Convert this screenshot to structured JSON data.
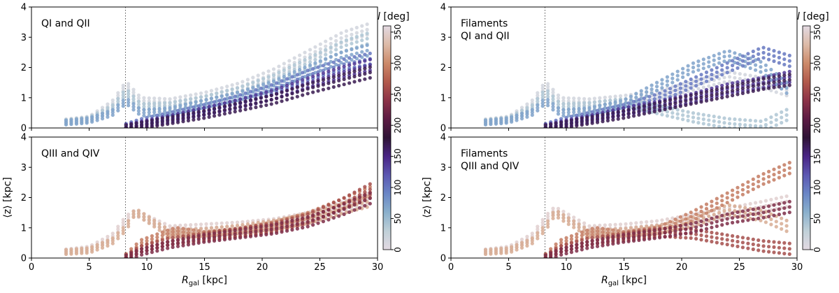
{
  "colorbar": {
    "label": "l [deg]",
    "ticks": [
      0,
      50,
      100,
      150,
      200,
      250,
      300,
      350
    ],
    "range": [
      0,
      360
    ],
    "colormap": "twilight",
    "stops": [
      "#e2d9e2",
      "#c0d0d8",
      "#8ab0cc",
      "#6a86c6",
      "#5c58b2",
      "#4a2585",
      "#2f1436",
      "#5c1b44",
      "#8c3348",
      "#b25a4c",
      "#cc8a6a",
      "#ddbba8",
      "#e2d9e2"
    ]
  },
  "chart_data": [
    {
      "id": "top-left",
      "type": "scatter",
      "annotation": [
        "QI and QII"
      ],
      "xlabel": "R_gal [kpc]",
      "ylabel": "",
      "xlim": [
        0,
        30
      ],
      "ylim": [
        0,
        4
      ],
      "xticks": [
        0,
        5,
        10,
        15,
        20,
        25,
        30
      ],
      "yticks": [
        0,
        1,
        2,
        3,
        4
      ],
      "vline_x": 8.15,
      "series": [
        {
          "name": "l=15",
          "l": 15,
          "x": [
            3,
            5,
            7,
            8.2,
            9.5,
            12,
            15,
            18,
            21,
            24,
            27,
            29.5
          ],
          "y": [
            0.22,
            0.3,
            0.8,
            1.45,
            0.9,
            0.85,
            1.05,
            1.35,
            1.8,
            2.4,
            3.0,
            3.3
          ]
        },
        {
          "name": "l=40",
          "l": 40,
          "x": [
            3,
            5,
            7,
            8.2,
            9.5,
            12,
            15,
            18,
            21,
            24,
            27,
            29.5
          ],
          "y": [
            0.2,
            0.28,
            0.65,
            1.2,
            0.7,
            0.72,
            0.92,
            1.2,
            1.6,
            2.15,
            2.7,
            3.0
          ]
        },
        {
          "name": "l=70",
          "l": 70,
          "x": [
            3,
            5,
            7,
            8.2,
            9.5,
            12,
            15,
            18,
            21,
            24,
            27,
            29.5
          ],
          "y": [
            0.18,
            0.25,
            0.5,
            0.9,
            0.5,
            0.55,
            0.8,
            1.05,
            1.4,
            1.9,
            2.35,
            2.6
          ]
        },
        {
          "name": "l=100",
          "l": 100,
          "x": [
            8.2,
            9.5,
            12,
            15,
            18,
            21,
            24,
            27,
            29.5
          ],
          "y": [
            0.05,
            0.2,
            0.4,
            0.65,
            0.95,
            1.3,
            1.75,
            2.1,
            2.3
          ]
        },
        {
          "name": "l=140",
          "l": 140,
          "x": [
            8.2,
            9.5,
            12,
            15,
            18,
            21,
            24,
            27,
            29.5
          ],
          "y": [
            0.02,
            0.12,
            0.3,
            0.55,
            0.8,
            1.1,
            1.5,
            1.85,
            2.1
          ]
        },
        {
          "name": "l=170",
          "l": 170,
          "x": [
            8.2,
            9.5,
            12,
            15,
            18,
            21,
            24,
            27,
            29.5
          ],
          "y": [
            0.0,
            0.08,
            0.25,
            0.45,
            0.7,
            0.95,
            1.3,
            1.6,
            1.85
          ]
        }
      ]
    },
    {
      "id": "top-right",
      "type": "scatter",
      "annotation": [
        "Filaments",
        "QI and QII"
      ],
      "xlabel": "R_gal [kpc]",
      "ylabel": "",
      "xlim": [
        0,
        30
      ],
      "ylim": [
        0,
        4
      ],
      "xticks": [
        0,
        5,
        10,
        15,
        20,
        25,
        30
      ],
      "yticks": [
        0,
        1,
        2,
        3,
        4
      ],
      "vline_x": 8.15,
      "series": [
        {
          "name": "l=15",
          "l": 15,
          "x": [
            3,
            5,
            7,
            8.2,
            9.5,
            12,
            15,
            18,
            21,
            24,
            27,
            29.5
          ],
          "y": [
            0.22,
            0.3,
            0.8,
            1.45,
            0.9,
            0.85,
            0.95,
            1.1,
            1.4,
            1.7,
            1.5,
            1.2
          ]
        },
        {
          "name": "l=40",
          "l": 40,
          "x": [
            3,
            5,
            7,
            8.2,
            9.5,
            12,
            15,
            18,
            21,
            24,
            27,
            29.5
          ],
          "y": [
            0.2,
            0.28,
            0.65,
            1.2,
            0.7,
            0.72,
            0.85,
            0.6,
            0.35,
            0.15,
            0.05,
            0.5
          ]
        },
        {
          "name": "l=70",
          "l": 70,
          "x": [
            3,
            5,
            7,
            8.2,
            9.5,
            12,
            15,
            18,
            21,
            24,
            27,
            29.5
          ],
          "y": [
            0.18,
            0.25,
            0.5,
            0.9,
            0.5,
            0.55,
            0.8,
            1.4,
            2.0,
            2.4,
            2.0,
            1.2
          ]
        },
        {
          "name": "l=100",
          "l": 100,
          "x": [
            8.2,
            9.5,
            12,
            15,
            18,
            21,
            24,
            27,
            29.5
          ],
          "y": [
            0.05,
            0.2,
            0.4,
            0.65,
            1.0,
            1.5,
            2.0,
            2.5,
            2.2
          ]
        },
        {
          "name": "l=140",
          "l": 140,
          "x": [
            8.2,
            9.5,
            12,
            15,
            18,
            21,
            24,
            27,
            29.5
          ],
          "y": [
            0.02,
            0.12,
            0.3,
            0.55,
            0.75,
            1.0,
            1.3,
            1.5,
            1.7
          ]
        },
        {
          "name": "l=170",
          "l": 170,
          "x": [
            8.2,
            9.5,
            12,
            15,
            18,
            21,
            24,
            27,
            29.5
          ],
          "y": [
            0.0,
            0.08,
            0.25,
            0.45,
            0.7,
            0.95,
            1.2,
            1.45,
            1.6
          ]
        }
      ]
    },
    {
      "id": "bottom-left",
      "type": "scatter",
      "annotation": [
        "QIII and QIV"
      ],
      "xlabel": "R_gal [kpc]",
      "ylabel": "⟨z⟩ [kpc]",
      "xlim": [
        0,
        30
      ],
      "ylim": [
        0,
        4
      ],
      "xticks": [
        0,
        5,
        10,
        15,
        20,
        25,
        30
      ],
      "yticks": [
        0,
        1,
        2,
        3,
        4
      ],
      "vline_x": 8.15,
      "series": [
        {
          "name": "l=350",
          "l": 350,
          "x": [
            3,
            5,
            7,
            8.2,
            9,
            12,
            15,
            18,
            21,
            24,
            27,
            29.5
          ],
          "y": [
            0.22,
            0.3,
            0.7,
            1.3,
            1.5,
            0.95,
            1.0,
            1.05,
            1.15,
            1.35,
            1.7,
            2.0
          ]
        },
        {
          "name": "l=320",
          "l": 320,
          "x": [
            3,
            5,
            7,
            8.2,
            9,
            12,
            15,
            18,
            21,
            24,
            27,
            29.5
          ],
          "y": [
            0.2,
            0.25,
            0.55,
            1.0,
            1.55,
            0.8,
            0.85,
            0.95,
            1.1,
            1.3,
            1.65,
            1.9
          ]
        },
        {
          "name": "l=290",
          "l": 290,
          "x": [
            8.2,
            9.5,
            12.5,
            15,
            18,
            21,
            24,
            27,
            29.5
          ],
          "y": [
            0.05,
            0.5,
            0.9,
            0.75,
            0.85,
            1.05,
            1.35,
            1.8,
            2.2
          ]
        },
        {
          "name": "l=260",
          "l": 260,
          "x": [
            8.2,
            9.5,
            12,
            15,
            18,
            21,
            24,
            27,
            29.5
          ],
          "y": [
            0.02,
            0.3,
            0.55,
            0.7,
            0.85,
            1.0,
            1.3,
            1.8,
            2.3
          ]
        },
        {
          "name": "l=230",
          "l": 230,
          "x": [
            8.2,
            9.5,
            12,
            15,
            18,
            21,
            24,
            27,
            29.5
          ],
          "y": [
            0.0,
            0.2,
            0.45,
            0.65,
            0.8,
            0.95,
            1.2,
            1.6,
            2.0
          ]
        }
      ]
    },
    {
      "id": "bottom-right",
      "type": "scatter",
      "annotation": [
        "Filaments",
        "QIII and QIV"
      ],
      "xlabel": "R_gal [kpc]",
      "ylabel": "⟨z⟩ [kpc]",
      "xlim": [
        0,
        30
      ],
      "ylim": [
        0,
        4
      ],
      "xticks": [
        0,
        5,
        10,
        15,
        20,
        25,
        30
      ],
      "yticks": [
        0,
        1,
        2,
        3,
        4
      ],
      "vline_x": 8.15,
      "series": [
        {
          "name": "l=350",
          "l": 350,
          "x": [
            3,
            5,
            7,
            8.2,
            9,
            12,
            15,
            18,
            21,
            24,
            27,
            29.5
          ],
          "y": [
            0.22,
            0.3,
            0.7,
            1.3,
            1.6,
            0.95,
            1.0,
            1.1,
            1.3,
            1.5,
            1.7,
            1.9
          ]
        },
        {
          "name": "l=320",
          "l": 320,
          "x": [
            3,
            5,
            7,
            8.2,
            9,
            12,
            15,
            18,
            21,
            24,
            27,
            29.5
          ],
          "y": [
            0.2,
            0.25,
            0.55,
            1.0,
            1.5,
            0.8,
            0.85,
            0.95,
            1.2,
            1.6,
            1.4,
            1.0
          ]
        },
        {
          "name": "l=290",
          "l": 290,
          "x": [
            8.2,
            9.5,
            12.5,
            15,
            18,
            21,
            24,
            27,
            29.5
          ],
          "y": [
            0.05,
            0.5,
            0.9,
            0.75,
            0.9,
            1.4,
            2.0,
            2.6,
            3.0
          ]
        },
        {
          "name": "l=260",
          "l": 260,
          "x": [
            8.2,
            9.5,
            12,
            15,
            18,
            21,
            24,
            27,
            29.5
          ],
          "y": [
            0.02,
            0.3,
            0.55,
            0.7,
            0.85,
            0.8,
            0.6,
            0.4,
            0.3
          ]
        },
        {
          "name": "l=230",
          "l": 230,
          "x": [
            8.2,
            9.5,
            12,
            15,
            18,
            21,
            24,
            27,
            29.5
          ],
          "y": [
            0.0,
            0.2,
            0.45,
            0.65,
            0.8,
            1.0,
            1.3,
            1.5,
            1.7
          ]
        }
      ]
    }
  ]
}
